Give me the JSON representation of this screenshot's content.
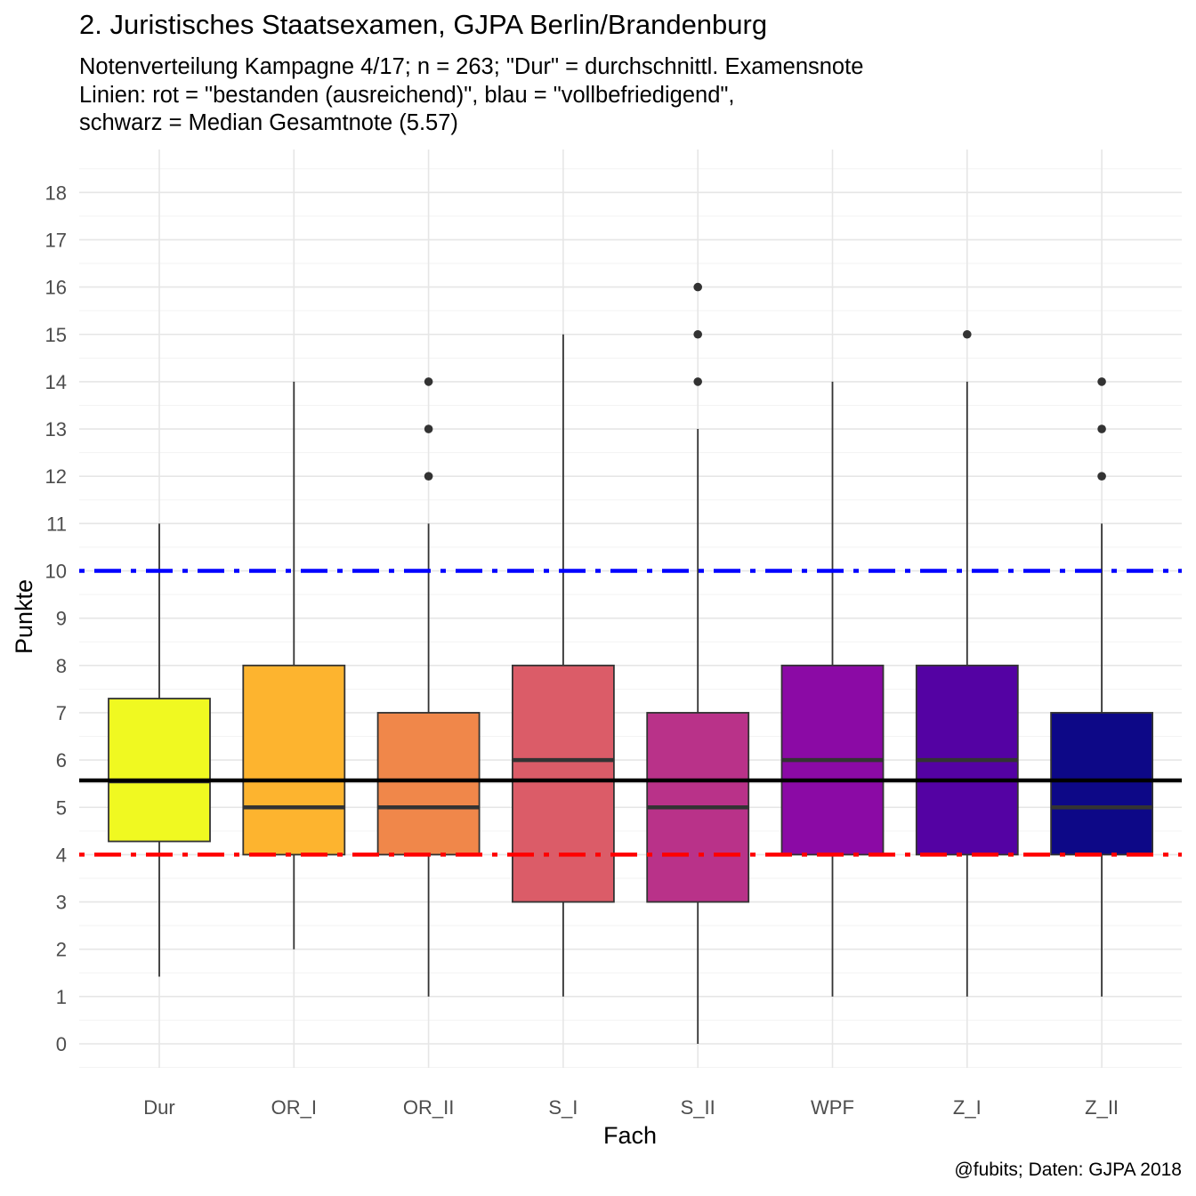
{
  "chart_data": {
    "type": "boxplot",
    "title": "2. Juristisches Staatsexamen, GJPA Berlin/Brandenburg",
    "subtitle_lines": [
      "Notenverteilung Kampagne 4/17; n = 263; \"Dur\" = durchschnittl. Examensnote",
      "Linien: rot  = \"bestanden (ausreichend)\", blau  = \"vollbefriedigend\",",
      "schwarz  = Median Gesamtnote (5.57)"
    ],
    "caption": "@fubits; Daten: GJPA 2018",
    "xlabel": "Fach",
    "ylabel": "Punkte",
    "ylim": [
      -0.8,
      18.8
    ],
    "yticks": [
      "0",
      "1",
      "2",
      "3",
      "4",
      "5",
      "6",
      "7",
      "8",
      "9",
      "10",
      "11",
      "12",
      "13",
      "14",
      "15",
      "16",
      "17",
      "18"
    ],
    "grid": true,
    "categories": [
      "Dur",
      "OR_I",
      "OR_II",
      "S_I",
      "S_II",
      "WPF",
      "Z_I",
      "Z_II"
    ],
    "boxes": [
      {
        "category": "Dur",
        "whisker_low": 1.42,
        "q1": 4.28,
        "median": 5.55,
        "q3": 7.3,
        "whisker_high": 11,
        "outliers": [],
        "color": "#F0F921"
      },
      {
        "category": "OR_I",
        "whisker_low": 2,
        "q1": 4,
        "median": 5,
        "q3": 8,
        "whisker_high": 14,
        "outliers": [],
        "color": "#FDB42F"
      },
      {
        "category": "OR_II",
        "whisker_low": 1,
        "q1": 4,
        "median": 5,
        "q3": 7,
        "whisker_high": 11,
        "outliers": [
          12,
          13,
          14
        ],
        "color": "#F0874A"
      },
      {
        "category": "S_I",
        "whisker_low": 1,
        "q1": 3,
        "median": 6,
        "q3": 8,
        "whisker_high": 15,
        "outliers": [],
        "color": "#DB5C68"
      },
      {
        "category": "S_II",
        "whisker_low": 0,
        "q1": 3,
        "median": 5,
        "q3": 7,
        "whisker_high": 13,
        "outliers": [
          14,
          15,
          16
        ],
        "color": "#B93289"
      },
      {
        "category": "WPF",
        "whisker_low": 1,
        "q1": 4,
        "median": 6,
        "q3": 8,
        "whisker_high": 14,
        "outliers": [],
        "color": "#8B0AA5"
      },
      {
        "category": "Z_I",
        "whisker_low": 1,
        "q1": 4,
        "median": 6,
        "q3": 8,
        "whisker_high": 14,
        "outliers": [
          15
        ],
        "color": "#5402A3"
      },
      {
        "category": "Z_II",
        "whisker_low": 1,
        "q1": 4,
        "median": 5,
        "q3": 7,
        "whisker_high": 11,
        "outliers": [
          12,
          13,
          14
        ],
        "color": "#0D0887"
      }
    ],
    "reference_lines": [
      {
        "name": "rot",
        "value": 4,
        "color": "#FF0000",
        "style": "dotdash"
      },
      {
        "name": "blau",
        "value": 10,
        "color": "#0000FF",
        "style": "dotdash"
      },
      {
        "name": "schwarz",
        "value": 5.57,
        "color": "#000000",
        "style": "solid"
      }
    ]
  }
}
